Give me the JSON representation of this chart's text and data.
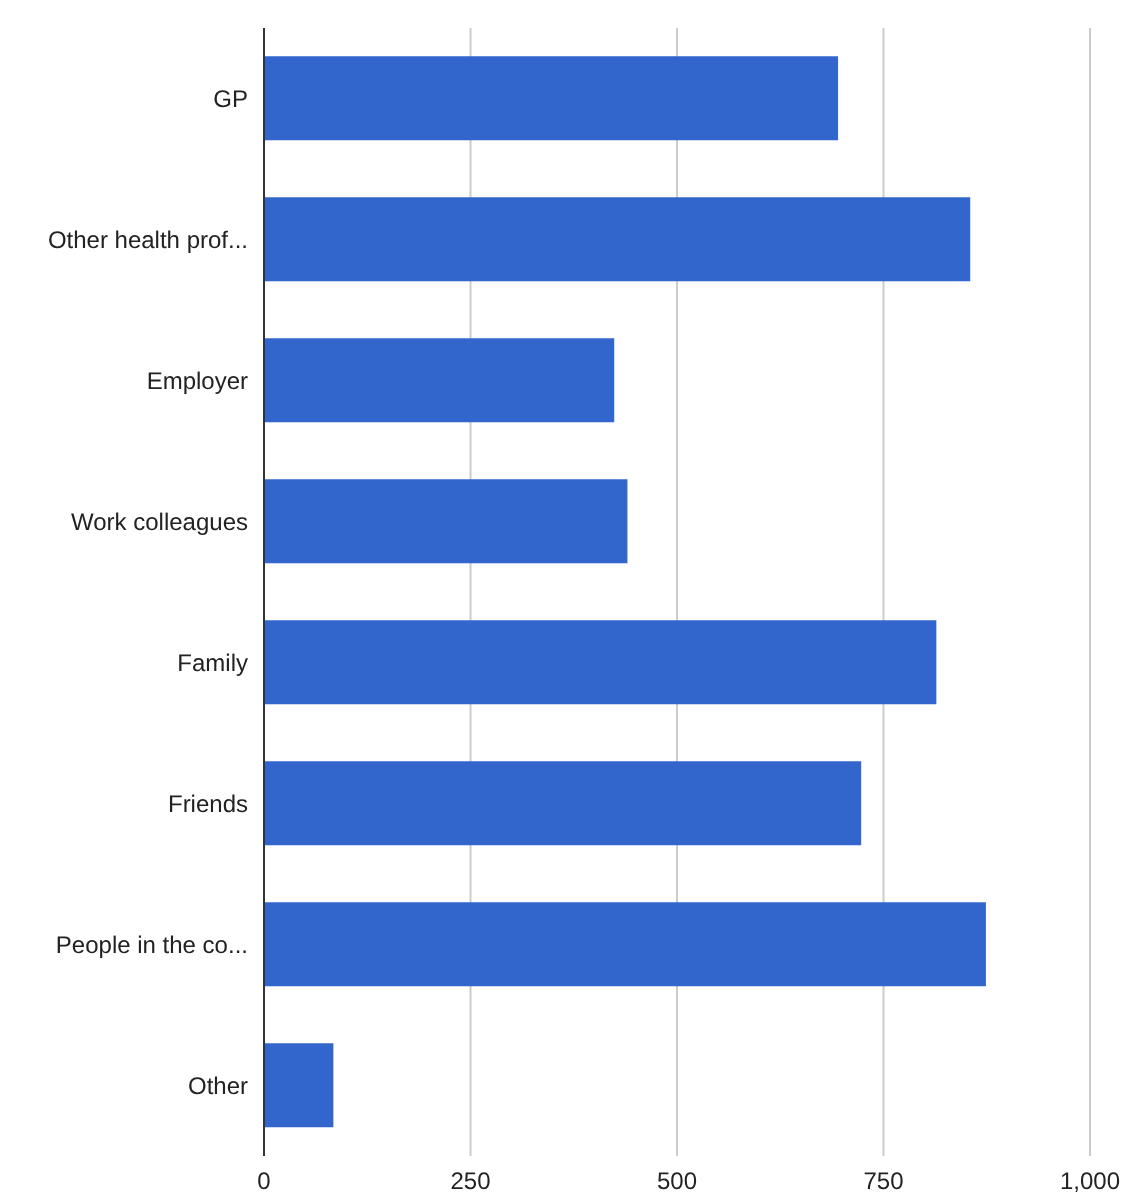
{
  "chart_data": {
    "type": "bar",
    "orientation": "horizontal",
    "categories": [
      "GP",
      "Other health prof...",
      "Employer",
      "Work colleagues",
      "Family",
      "Friends",
      "People in the co...",
      "Other"
    ],
    "values": [
      695,
      855,
      424,
      440,
      814,
      723,
      874,
      84
    ],
    "color": "#3366cc",
    "xlim": [
      0,
      1000
    ],
    "xticks": [
      0,
      250,
      500,
      750,
      {
        "value": 1000,
        "label": "1,000"
      }
    ],
    "grid": "x"
  }
}
